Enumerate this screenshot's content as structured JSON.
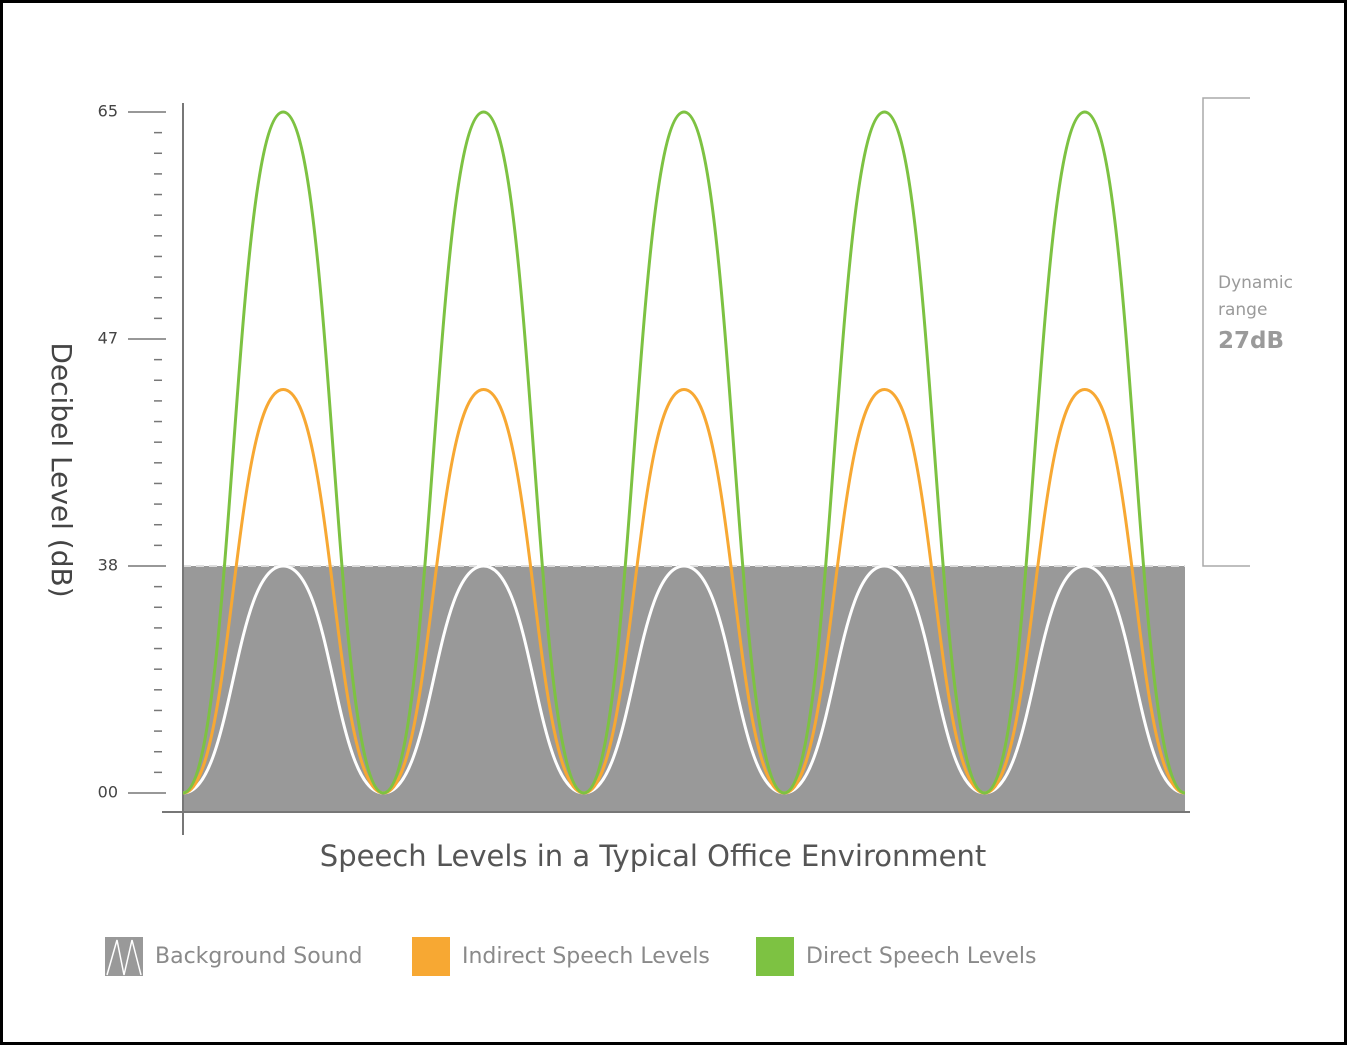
{
  "chart_data": {
    "type": "line",
    "title": "Speech Levels in a Typical Office Environment",
    "y_label": "Decibel Level (dB)",
    "categories": [
      null,
      null,
      null,
      null,
      null,
      null,
      null,
      null,
      null,
      null,
      null
    ],
    "yticks": [
      65,
      47,
      38,
      {
        "value": 0,
        "label": "00"
      }
    ],
    "series": [
      {
        "name": "Background Sound",
        "color": "#ffffff",
        "area_color": "#999999",
        "values": [
          0,
          38,
          0,
          38,
          0,
          38,
          0,
          38,
          0,
          38,
          0
        ]
      },
      {
        "name": "Indirect Speech Levels",
        "color": "#f7a833",
        "values": [
          0,
          45,
          0,
          45,
          0,
          45,
          0,
          45,
          0,
          45,
          0
        ]
      },
      {
        "name": "Direct Speech Levels",
        "color": "#7dc242",
        "values": [
          0,
          65,
          0,
          65,
          0,
          65,
          0,
          65,
          0,
          65,
          0
        ]
      }
    ],
    "annotation": {
      "label": "Dynamic range",
      "value": "27dB"
    }
  }
}
